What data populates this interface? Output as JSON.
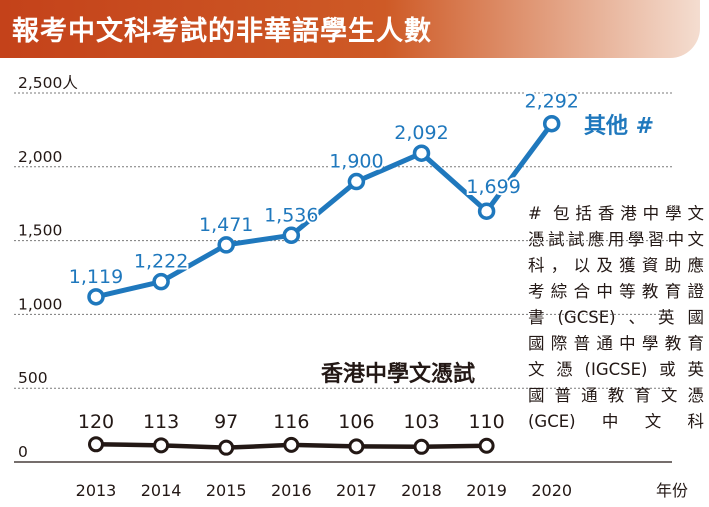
{
  "title": "報考中文科考試的非華語學生人數",
  "chart_data": {
    "type": "line",
    "x": [
      "2013",
      "2014",
      "2015",
      "2016",
      "2017",
      "2018",
      "2019",
      "2020"
    ],
    "xlabel_unit": "年份",
    "ylim": [
      0,
      2500
    ],
    "yticks": [
      {
        "value": 0,
        "label": "0"
      },
      {
        "value": 500,
        "label": "500"
      },
      {
        "value": 1000,
        "label": "1,000"
      },
      {
        "value": 1500,
        "label": "1,500"
      },
      {
        "value": 2000,
        "label": "2,000"
      },
      {
        "value": 2500,
        "label": "2,500人"
      }
    ],
    "series": [
      {
        "name": "其他 #",
        "color": "#1f78bd",
        "x": [
          "2013",
          "2014",
          "2015",
          "2016",
          "2017",
          "2018",
          "2019",
          "2020"
        ],
        "values": [
          1119,
          1222,
          1471,
          1536,
          1900,
          2092,
          1699,
          2292
        ],
        "labels": [
          "1,119",
          "1,222",
          "1,471",
          "1,536",
          "1,900",
          "2,092",
          "1,699",
          "2,292"
        ]
      },
      {
        "name": "香港中學文憑試",
        "color": "#231815",
        "x": [
          "2013",
          "2014",
          "2015",
          "2016",
          "2017",
          "2018",
          "2019"
        ],
        "values": [
          120,
          113,
          97,
          116,
          106,
          103,
          110
        ],
        "labels": [
          "120",
          "113",
          "97",
          "116",
          "106",
          "103",
          "110"
        ]
      }
    ]
  },
  "footnote": [
    "# 包括香港中學文",
    "憑試試應用學習中文",
    "科，以及獲資助應",
    "考綜合中等教育證",
    "書(GCSE)、英國",
    "國際普通中學教育",
    "文憑(IGCSE)或英",
    "國普通教育文憑",
    "(GCE)中文科"
  ]
}
